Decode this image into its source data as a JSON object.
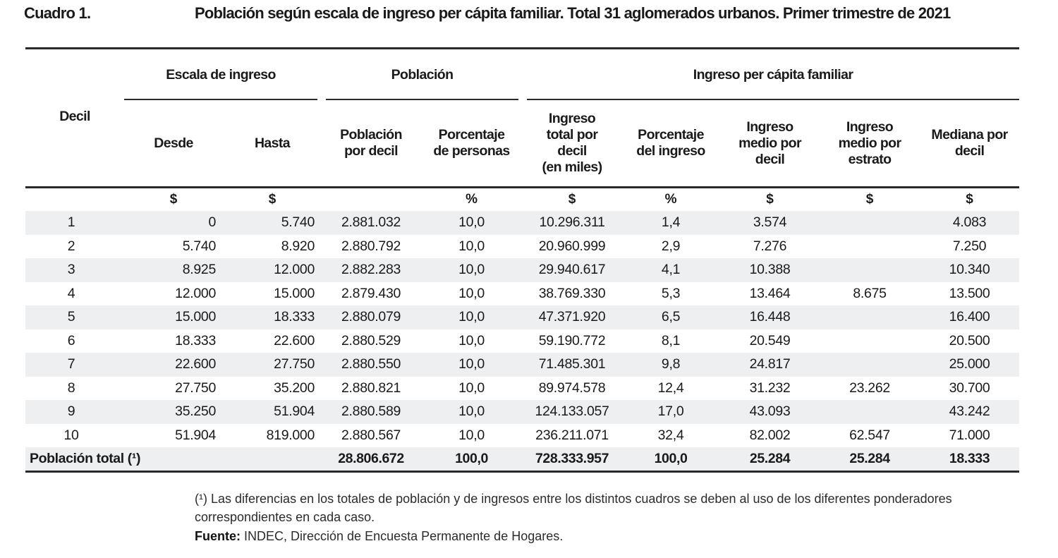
{
  "header": {
    "number": "Cuadro 1.",
    "title": "Población según escala de ingreso per cápita familiar. Total 31 aglomerados urbanos. Primer trimestre de 2021"
  },
  "columns": {
    "decil": "Decil",
    "group_escala": "Escala de ingreso",
    "group_poblacion": "Población",
    "group_ingreso": "Ingreso per cápita familiar",
    "desde": "Desde",
    "hasta": "Hasta",
    "poblacion_decil": [
      "Población",
      "por decil"
    ],
    "porcentaje_personas": [
      "Porcentaje",
      "de personas"
    ],
    "ingreso_total": [
      "Ingreso",
      "total por",
      "decil",
      "(en miles)"
    ],
    "porcentaje_ingreso": [
      "Porcentaje",
      "del ingreso"
    ],
    "medio_decil": [
      "Ingreso",
      "medio por",
      "decil"
    ],
    "medio_estrato": [
      "Ingreso",
      "medio por",
      "estrato"
    ],
    "mediana": [
      "Mediana por",
      "decil"
    ]
  },
  "units": [
    "",
    "$",
    "$",
    "",
    "%",
    "$",
    "%",
    "$",
    "$",
    "$"
  ],
  "rows": [
    [
      "1",
      "0",
      "5.740",
      "2.881.032",
      "10,0",
      "10.296.311",
      "1,4",
      "3.574",
      "",
      "4.083"
    ],
    [
      "2",
      "5.740",
      "8.920",
      "2.880.792",
      "10,0",
      "20.960.999",
      "2,9",
      "7.276",
      "",
      "7.250"
    ],
    [
      "3",
      "8.925",
      "12.000",
      "2.882.283",
      "10,0",
      "29.940.617",
      "4,1",
      "10.388",
      "",
      "10.340"
    ],
    [
      "4",
      "12.000",
      "15.000",
      "2.879.430",
      "10,0",
      "38.769.330",
      "5,3",
      "13.464",
      "8.675",
      "13.500"
    ],
    [
      "5",
      "15.000",
      "18.333",
      "2.880.079",
      "10,0",
      "47.371.920",
      "6,5",
      "16.448",
      "",
      "16.400"
    ],
    [
      "6",
      "18.333",
      "22.600",
      "2.880.529",
      "10,0",
      "59.190.772",
      "8,1",
      "20.549",
      "",
      "20.500"
    ],
    [
      "7",
      "22.600",
      "27.750",
      "2.880.550",
      "10,0",
      "71.485.301",
      "9,8",
      "24.817",
      "",
      "25.000"
    ],
    [
      "8",
      "27.750",
      "35.200",
      "2.880.821",
      "10,0",
      "89.974.578",
      "12,4",
      "31.232",
      "23.262",
      "30.700"
    ],
    [
      "9",
      "35.250",
      "51.904",
      "2.880.589",
      "10,0",
      "124.133.057",
      "17,0",
      "43.093",
      "",
      "43.242"
    ],
    [
      "10",
      "51.904",
      "819.000",
      "2.880.567",
      "10,0",
      "236.211.071",
      "32,4",
      "82.002",
      "62.547",
      "71.000"
    ]
  ],
  "total": {
    "label": "Población total (¹)",
    "poblacion": "28.806.672",
    "porcentaje_personas": "100,0",
    "ingreso_total": "728.333.957",
    "porcentaje_ingreso": "100,0",
    "medio_decil": "25.284",
    "medio_estrato": "25.284",
    "mediana": "18.333"
  },
  "footnote": {
    "mark": "(¹)",
    "text": "Las diferencias en los totales de población y de ingresos entre los distintos cuadros se deben al uso de los diferentes ponderadores correspondientes en cada caso."
  },
  "source": {
    "label": "Fuente:",
    "text": "INDEC, Dirección de Encuesta Permanente de Hogares."
  }
}
